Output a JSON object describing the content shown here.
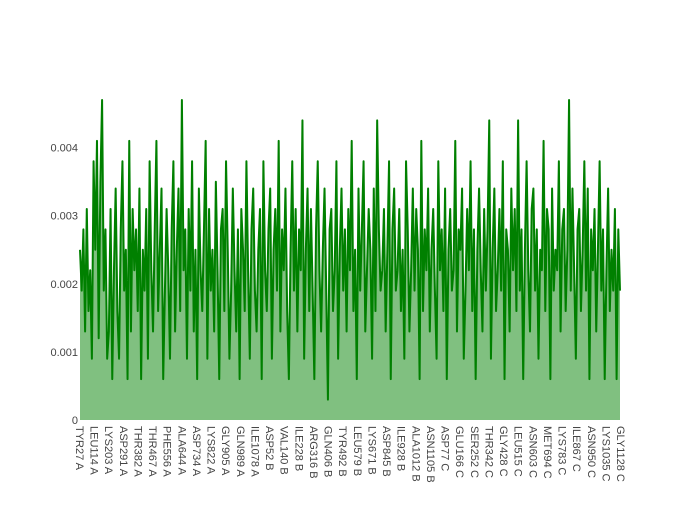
{
  "chart_data": {
    "type": "area",
    "title": "",
    "xlabel": "",
    "ylabel": "",
    "ylim": [
      0,
      0.0047
    ],
    "y_ticks": [
      0,
      0.001,
      0.002,
      0.003,
      0.004
    ],
    "y_tick_labels": [
      "0",
      "0.001",
      "0.002",
      "0.003",
      "0.004"
    ],
    "grid": false,
    "legend": "none",
    "x_tick_labels": [
      "TYR27 A",
      "LEU114 A",
      "LYS203 A",
      "ASP291 A",
      "THR382 A",
      "THR467 A",
      "PHE556 A",
      "ALA644 A",
      "ASP734 A",
      "LYS822 A",
      "GLY905 A",
      "GLN989 A",
      "ILE1078 A",
      "ASP52 B",
      "VAL140 B",
      "ILE228 B",
      "ARG316 B",
      "GLN406 B",
      "TYR492 B",
      "LEU579 B",
      "LYS671 B",
      "ASP845 B",
      "ILE928 B",
      "ALA1012 B",
      "ASN1105 B",
      "ASP77 C",
      "GLU166 C",
      "SER252 C",
      "THR342 C",
      "GLY428 C",
      "LEU515 C",
      "ASN603 C",
      "MET694 C",
      "LYS783 C",
      "ILE867 C",
      "ASN950 C",
      "LYS1035 C",
      "GLY1128 C"
    ],
    "series": [
      {
        "values": [
          0.0025,
          0.0019,
          0.0028,
          0.0013,
          0.0031,
          0.0016,
          0.0022,
          0.0009,
          0.0038,
          0.0025,
          0.0041,
          0.0012,
          0.0035,
          0.0047,
          0.0019,
          0.0028,
          0.0009,
          0.0013,
          0.0031,
          0.0006,
          0.0022,
          0.0034,
          0.0016,
          0.0009,
          0.0028,
          0.0038,
          0.0019,
          0.0025,
          0.0006,
          0.0041,
          0.0013,
          0.0031,
          0.0022,
          0.0028,
          0.0016,
          0.0034,
          0.0006,
          0.0025,
          0.0019,
          0.0031,
          0.0009,
          0.0038,
          0.0022,
          0.0013,
          0.0028,
          0.0041,
          0.0016,
          0.0025,
          0.0034,
          0.0006,
          0.0019,
          0.0031,
          0.0022,
          0.0009,
          0.0028,
          0.0038,
          0.0013,
          0.0025,
          0.0034,
          0.0016,
          0.0047,
          0.0022,
          0.0028,
          0.0009,
          0.0031,
          0.0019,
          0.0038,
          0.0013,
          0.0025,
          0.0006,
          0.0034,
          0.0022,
          0.0016,
          0.0028,
          0.0041,
          0.0009,
          0.0031,
          0.0019,
          0.0025,
          0.0013,
          0.0035,
          0.0022,
          0.0006,
          0.0028,
          0.0031,
          0.0016,
          0.0038,
          0.0025,
          0.0009,
          0.0019,
          0.0034,
          0.0022,
          0.0013,
          0.0028,
          0.0006,
          0.0031,
          0.0025,
          0.0016,
          0.0038,
          0.0022,
          0.0009,
          0.0028,
          0.0034,
          0.0019,
          0.0013,
          0.0025,
          0.0031,
          0.0006,
          0.0038,
          0.0022,
          0.0016,
          0.0028,
          0.0034,
          0.0009,
          0.0025,
          0.0031,
          0.0019,
          0.0041,
          0.0013,
          0.0028,
          0.0022,
          0.0034,
          0.0016,
          0.0006,
          0.0025,
          0.0038,
          0.0019,
          0.0031,
          0.0013,
          0.0028,
          0.0022,
          0.0044,
          0.0009,
          0.0025,
          0.0034,
          0.0016,
          0.0031,
          0.0019,
          0.0006,
          0.0028,
          0.0038,
          0.0022,
          0.0013,
          0.0025,
          0.0034,
          0.0019,
          0.0003,
          0.0028,
          0.0031,
          0.0016,
          0.0022,
          0.0038,
          0.0009,
          0.0025,
          0.0034,
          0.0019,
          0.0028,
          0.0013,
          0.0031,
          0.0022,
          0.0041,
          0.0016,
          0.0025,
          0.0006,
          0.0034,
          0.0019,
          0.0028,
          0.0038,
          0.0013,
          0.0022,
          0.0031,
          0.0025,
          0.0009,
          0.0034,
          0.0016,
          0.0044,
          0.0028,
          0.0019,
          0.0022,
          0.0031,
          0.0013,
          0.0025,
          0.0038,
          0.0006,
          0.0028,
          0.0034,
          0.0019,
          0.0022,
          0.0031,
          0.0016,
          0.0025,
          0.0009,
          0.0038,
          0.0028,
          0.0013,
          0.0022,
          0.0034,
          0.0019,
          0.0031,
          0.0025,
          0.0006,
          0.0041,
          0.0016,
          0.0028,
          0.0022,
          0.0034,
          0.0013,
          0.0025,
          0.0031,
          0.0019,
          0.0009,
          0.0038,
          0.0022,
          0.0028,
          0.0016,
          0.0034,
          0.0006,
          0.0025,
          0.0031,
          0.0019,
          0.0022,
          0.0041,
          0.0013,
          0.0028,
          0.0025,
          0.0034,
          0.0009,
          0.0019,
          0.0031,
          0.0022,
          0.0038,
          0.0016,
          0.0028,
          0.0006,
          0.0025,
          0.0034,
          0.0022,
          0.0013,
          0.0031,
          0.0019,
          0.0028,
          0.0044,
          0.0009,
          0.0025,
          0.0034,
          0.0016,
          0.0022,
          0.0031,
          0.0019,
          0.0038,
          0.0006,
          0.0028,
          0.0025,
          0.0013,
          0.0034,
          0.0022,
          0.0031,
          0.0016,
          0.0044,
          0.0019,
          0.0028,
          0.0006,
          0.0025,
          0.0038,
          0.0022,
          0.0013,
          0.0031,
          0.0034,
          0.0019,
          0.0028,
          0.0009,
          0.0025,
          0.0022,
          0.0041,
          0.0016,
          0.0031,
          0.0028,
          0.0006,
          0.0034,
          0.0019,
          0.0025,
          0.0022,
          0.0038,
          0.0013,
          0.0028,
          0.0031,
          0.0016,
          0.0025,
          0.0047,
          0.0019,
          0.0034,
          0.0022,
          0.0009,
          0.0028,
          0.0031,
          0.0016,
          0.0025,
          0.0038,
          0.0019,
          0.0034,
          0.0006,
          0.0028,
          0.0022,
          0.0031,
          0.0013,
          0.0025,
          0.0038,
          0.0019,
          0.0028,
          0.0006,
          0.0022,
          0.0034,
          0.0016,
          0.0025,
          0.0019,
          0.0031,
          0.0006,
          0.0028,
          0.0019
        ]
      }
    ],
    "colors": {
      "line": "#008000",
      "fill": "#80c080",
      "axis_text": "#444444"
    }
  }
}
